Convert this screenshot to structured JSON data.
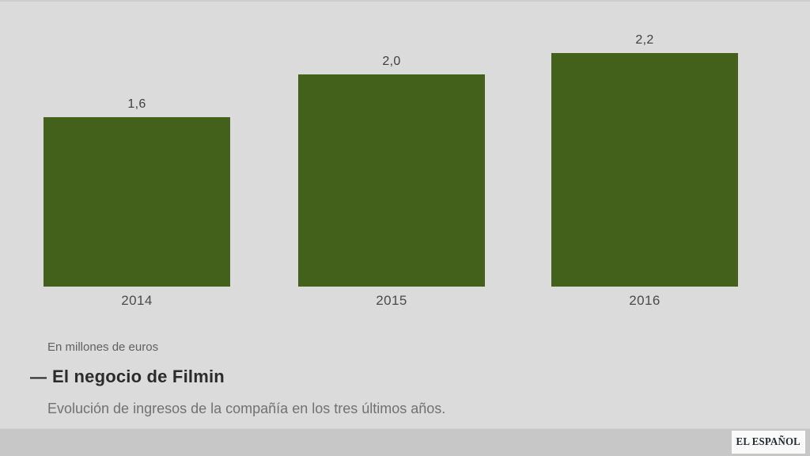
{
  "chart_data": {
    "type": "bar",
    "categories": [
      "2014",
      "2015",
      "2016"
    ],
    "values": [
      1.6,
      2.0,
      2.2
    ],
    "value_labels": [
      "1,6",
      "2,0",
      "2,2"
    ],
    "title": "El negocio de Filmin",
    "subtitle": "Evolución de ingresos de la compañía en los tres últimos años.",
    "unit_note": "En millones de euros",
    "xlabel": "",
    "ylabel": "",
    "ylim": [
      0,
      2.4
    ],
    "grid": false,
    "legend": "none",
    "bar_color": "#44611b"
  },
  "caption": {
    "title_dash": "—"
  },
  "footer": {
    "brand": "EL ESPAÑOL"
  },
  "colors": {
    "background": "#dbdbdb",
    "bar": "#44611b",
    "footer_band": "#c7c7c7",
    "brand_box": "#fafafa",
    "brand_text": "#232832",
    "value_text": "#3f3f3f",
    "year_text": "#4a4a4a"
  }
}
